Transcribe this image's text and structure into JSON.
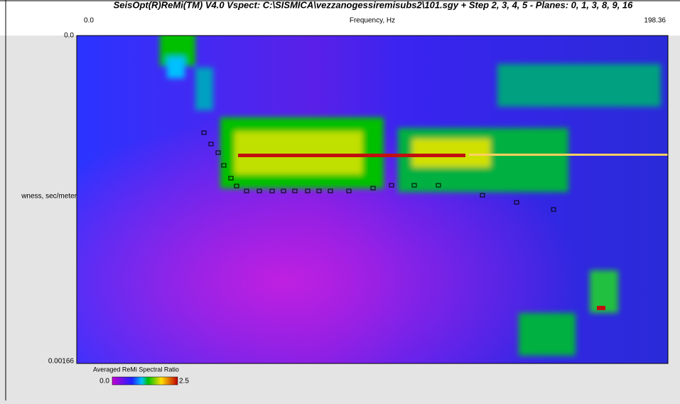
{
  "header": {
    "title": "SeisOpt(R)ReMi(TM) V4.0 Vspect: C:\\SISMICA\\vezzanogessiremisubs2\\101.sgy + Step 2, 3, 4, 5 - Planes: 0, 1, 3, 8, 9, 16"
  },
  "plot": {
    "x_axis": {
      "min_label": "0.0",
      "title": "Frequency, Hz",
      "max_label": "198.36"
    },
    "y_axis": {
      "min_label": "0.0",
      "title": "wness, sec/meter",
      "max_label": "0.00166"
    }
  },
  "colorbar": {
    "title": "Averaged ReMi Spectral Ratio",
    "min_label": "0.0",
    "max_label": "2.5"
  }
}
